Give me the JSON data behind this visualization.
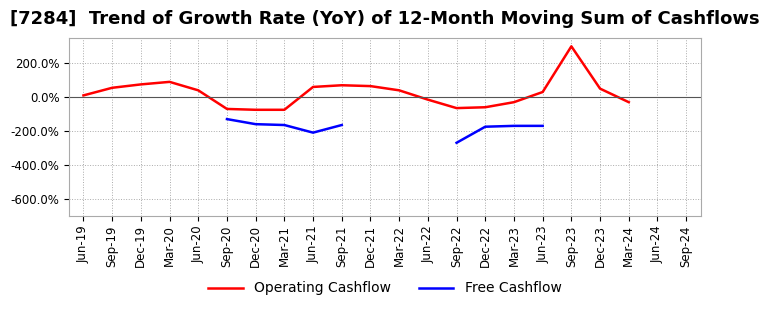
{
  "title": "[7284]  Trend of Growth Rate (YoY) of 12-Month Moving Sum of Cashflows",
  "title_fontsize": 13,
  "background_color": "#ffffff",
  "plot_background": "#ffffff",
  "grid_color": "#aaaaaa",
  "x_labels": [
    "Jun-19",
    "Sep-19",
    "Dec-19",
    "Mar-20",
    "Jun-20",
    "Sep-20",
    "Dec-20",
    "Mar-21",
    "Jun-21",
    "Sep-21",
    "Dec-21",
    "Mar-22",
    "Jun-22",
    "Sep-22",
    "Dec-22",
    "Mar-23",
    "Jun-23",
    "Sep-23",
    "Dec-23",
    "Mar-24",
    "Jun-24",
    "Sep-24"
  ],
  "ylim": [
    -700,
    350
  ],
  "yticks": [
    -600,
    -400,
    -200,
    0,
    200
  ],
  "ytick_labels": [
    "-600.0%",
    "-400.0%",
    "-200.0%",
    "0.0%",
    "200.0%"
  ],
  "operating_cashflow": [
    10,
    55,
    75,
    90,
    40,
    -70,
    -75,
    -75,
    60,
    70,
    65,
    40,
    -15,
    -65,
    -60,
    -30,
    30,
    300,
    50,
    -30,
    null,
    null
  ],
  "free_cashflow": [
    null,
    null,
    null,
    null,
    null,
    -130,
    -160,
    -165,
    -210,
    -165,
    null,
    null,
    null,
    -270,
    -175,
    -170,
    -170,
    null,
    null,
    null,
    null,
    null
  ],
  "op_color": "#ff0000",
  "free_color": "#0000ff",
  "legend_op": "Operating Cashflow",
  "legend_free": "Free Cashflow",
  "tick_fontsize": 8.5,
  "legend_fontsize": 10
}
